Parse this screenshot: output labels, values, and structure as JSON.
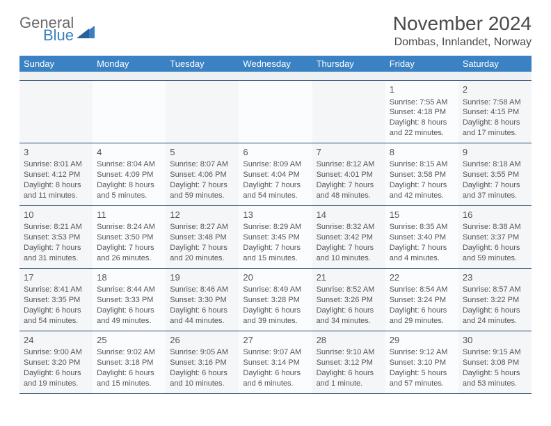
{
  "brand": {
    "line1": "General",
    "line2": "Blue",
    "text_color": "#6a6a6a",
    "accent_color": "#3b7fc1"
  },
  "title": {
    "month_year": "November 2024",
    "location": "Dombas, Innlandet, Norway"
  },
  "colors": {
    "header_bg": "#3b82c4",
    "header_text": "#ffffff",
    "row_border": "#2a4a70",
    "alt_bg_a": "#f4f6f8",
    "alt_bg_b": "#fbfcfd",
    "spacer_bg": "#eef1f3"
  },
  "day_headers": [
    "Sunday",
    "Monday",
    "Tuesday",
    "Wednesday",
    "Thursday",
    "Friday",
    "Saturday"
  ],
  "weeks": [
    [
      {
        "empty": true
      },
      {
        "empty": true
      },
      {
        "empty": true
      },
      {
        "empty": true
      },
      {
        "empty": true
      },
      {
        "num": "1",
        "sunrise": "Sunrise: 7:55 AM",
        "sunset": "Sunset: 4:18 PM",
        "daylight1": "Daylight: 8 hours",
        "daylight2": "and 22 minutes."
      },
      {
        "num": "2",
        "sunrise": "Sunrise: 7:58 AM",
        "sunset": "Sunset: 4:15 PM",
        "daylight1": "Daylight: 8 hours",
        "daylight2": "and 17 minutes."
      }
    ],
    [
      {
        "num": "3",
        "sunrise": "Sunrise: 8:01 AM",
        "sunset": "Sunset: 4:12 PM",
        "daylight1": "Daylight: 8 hours",
        "daylight2": "and 11 minutes."
      },
      {
        "num": "4",
        "sunrise": "Sunrise: 8:04 AM",
        "sunset": "Sunset: 4:09 PM",
        "daylight1": "Daylight: 8 hours",
        "daylight2": "and 5 minutes."
      },
      {
        "num": "5",
        "sunrise": "Sunrise: 8:07 AM",
        "sunset": "Sunset: 4:06 PM",
        "daylight1": "Daylight: 7 hours",
        "daylight2": "and 59 minutes."
      },
      {
        "num": "6",
        "sunrise": "Sunrise: 8:09 AM",
        "sunset": "Sunset: 4:04 PM",
        "daylight1": "Daylight: 7 hours",
        "daylight2": "and 54 minutes."
      },
      {
        "num": "7",
        "sunrise": "Sunrise: 8:12 AM",
        "sunset": "Sunset: 4:01 PM",
        "daylight1": "Daylight: 7 hours",
        "daylight2": "and 48 minutes."
      },
      {
        "num": "8",
        "sunrise": "Sunrise: 8:15 AM",
        "sunset": "Sunset: 3:58 PM",
        "daylight1": "Daylight: 7 hours",
        "daylight2": "and 42 minutes."
      },
      {
        "num": "9",
        "sunrise": "Sunrise: 8:18 AM",
        "sunset": "Sunset: 3:55 PM",
        "daylight1": "Daylight: 7 hours",
        "daylight2": "and 37 minutes."
      }
    ],
    [
      {
        "num": "10",
        "sunrise": "Sunrise: 8:21 AM",
        "sunset": "Sunset: 3:53 PM",
        "daylight1": "Daylight: 7 hours",
        "daylight2": "and 31 minutes."
      },
      {
        "num": "11",
        "sunrise": "Sunrise: 8:24 AM",
        "sunset": "Sunset: 3:50 PM",
        "daylight1": "Daylight: 7 hours",
        "daylight2": "and 26 minutes."
      },
      {
        "num": "12",
        "sunrise": "Sunrise: 8:27 AM",
        "sunset": "Sunset: 3:48 PM",
        "daylight1": "Daylight: 7 hours",
        "daylight2": "and 20 minutes."
      },
      {
        "num": "13",
        "sunrise": "Sunrise: 8:29 AM",
        "sunset": "Sunset: 3:45 PM",
        "daylight1": "Daylight: 7 hours",
        "daylight2": "and 15 minutes."
      },
      {
        "num": "14",
        "sunrise": "Sunrise: 8:32 AM",
        "sunset": "Sunset: 3:42 PM",
        "daylight1": "Daylight: 7 hours",
        "daylight2": "and 10 minutes."
      },
      {
        "num": "15",
        "sunrise": "Sunrise: 8:35 AM",
        "sunset": "Sunset: 3:40 PM",
        "daylight1": "Daylight: 7 hours",
        "daylight2": "and 4 minutes."
      },
      {
        "num": "16",
        "sunrise": "Sunrise: 8:38 AM",
        "sunset": "Sunset: 3:37 PM",
        "daylight1": "Daylight: 6 hours",
        "daylight2": "and 59 minutes."
      }
    ],
    [
      {
        "num": "17",
        "sunrise": "Sunrise: 8:41 AM",
        "sunset": "Sunset: 3:35 PM",
        "daylight1": "Daylight: 6 hours",
        "daylight2": "and 54 minutes."
      },
      {
        "num": "18",
        "sunrise": "Sunrise: 8:44 AM",
        "sunset": "Sunset: 3:33 PM",
        "daylight1": "Daylight: 6 hours",
        "daylight2": "and 49 minutes."
      },
      {
        "num": "19",
        "sunrise": "Sunrise: 8:46 AM",
        "sunset": "Sunset: 3:30 PM",
        "daylight1": "Daylight: 6 hours",
        "daylight2": "and 44 minutes."
      },
      {
        "num": "20",
        "sunrise": "Sunrise: 8:49 AM",
        "sunset": "Sunset: 3:28 PM",
        "daylight1": "Daylight: 6 hours",
        "daylight2": "and 39 minutes."
      },
      {
        "num": "21",
        "sunrise": "Sunrise: 8:52 AM",
        "sunset": "Sunset: 3:26 PM",
        "daylight1": "Daylight: 6 hours",
        "daylight2": "and 34 minutes."
      },
      {
        "num": "22",
        "sunrise": "Sunrise: 8:54 AM",
        "sunset": "Sunset: 3:24 PM",
        "daylight1": "Daylight: 6 hours",
        "daylight2": "and 29 minutes."
      },
      {
        "num": "23",
        "sunrise": "Sunrise: 8:57 AM",
        "sunset": "Sunset: 3:22 PM",
        "daylight1": "Daylight: 6 hours",
        "daylight2": "and 24 minutes."
      }
    ],
    [
      {
        "num": "24",
        "sunrise": "Sunrise: 9:00 AM",
        "sunset": "Sunset: 3:20 PM",
        "daylight1": "Daylight: 6 hours",
        "daylight2": "and 19 minutes."
      },
      {
        "num": "25",
        "sunrise": "Sunrise: 9:02 AM",
        "sunset": "Sunset: 3:18 PM",
        "daylight1": "Daylight: 6 hours",
        "daylight2": "and 15 minutes."
      },
      {
        "num": "26",
        "sunrise": "Sunrise: 9:05 AM",
        "sunset": "Sunset: 3:16 PM",
        "daylight1": "Daylight: 6 hours",
        "daylight2": "and 10 minutes."
      },
      {
        "num": "27",
        "sunrise": "Sunrise: 9:07 AM",
        "sunset": "Sunset: 3:14 PM",
        "daylight1": "Daylight: 6 hours",
        "daylight2": "and 6 minutes."
      },
      {
        "num": "28",
        "sunrise": "Sunrise: 9:10 AM",
        "sunset": "Sunset: 3:12 PM",
        "daylight1": "Daylight: 6 hours",
        "daylight2": "and 1 minute."
      },
      {
        "num": "29",
        "sunrise": "Sunrise: 9:12 AM",
        "sunset": "Sunset: 3:10 PM",
        "daylight1": "Daylight: 5 hours",
        "daylight2": "and 57 minutes."
      },
      {
        "num": "30",
        "sunrise": "Sunrise: 9:15 AM",
        "sunset": "Sunset: 3:08 PM",
        "daylight1": "Daylight: 5 hours",
        "daylight2": "and 53 minutes."
      }
    ]
  ]
}
